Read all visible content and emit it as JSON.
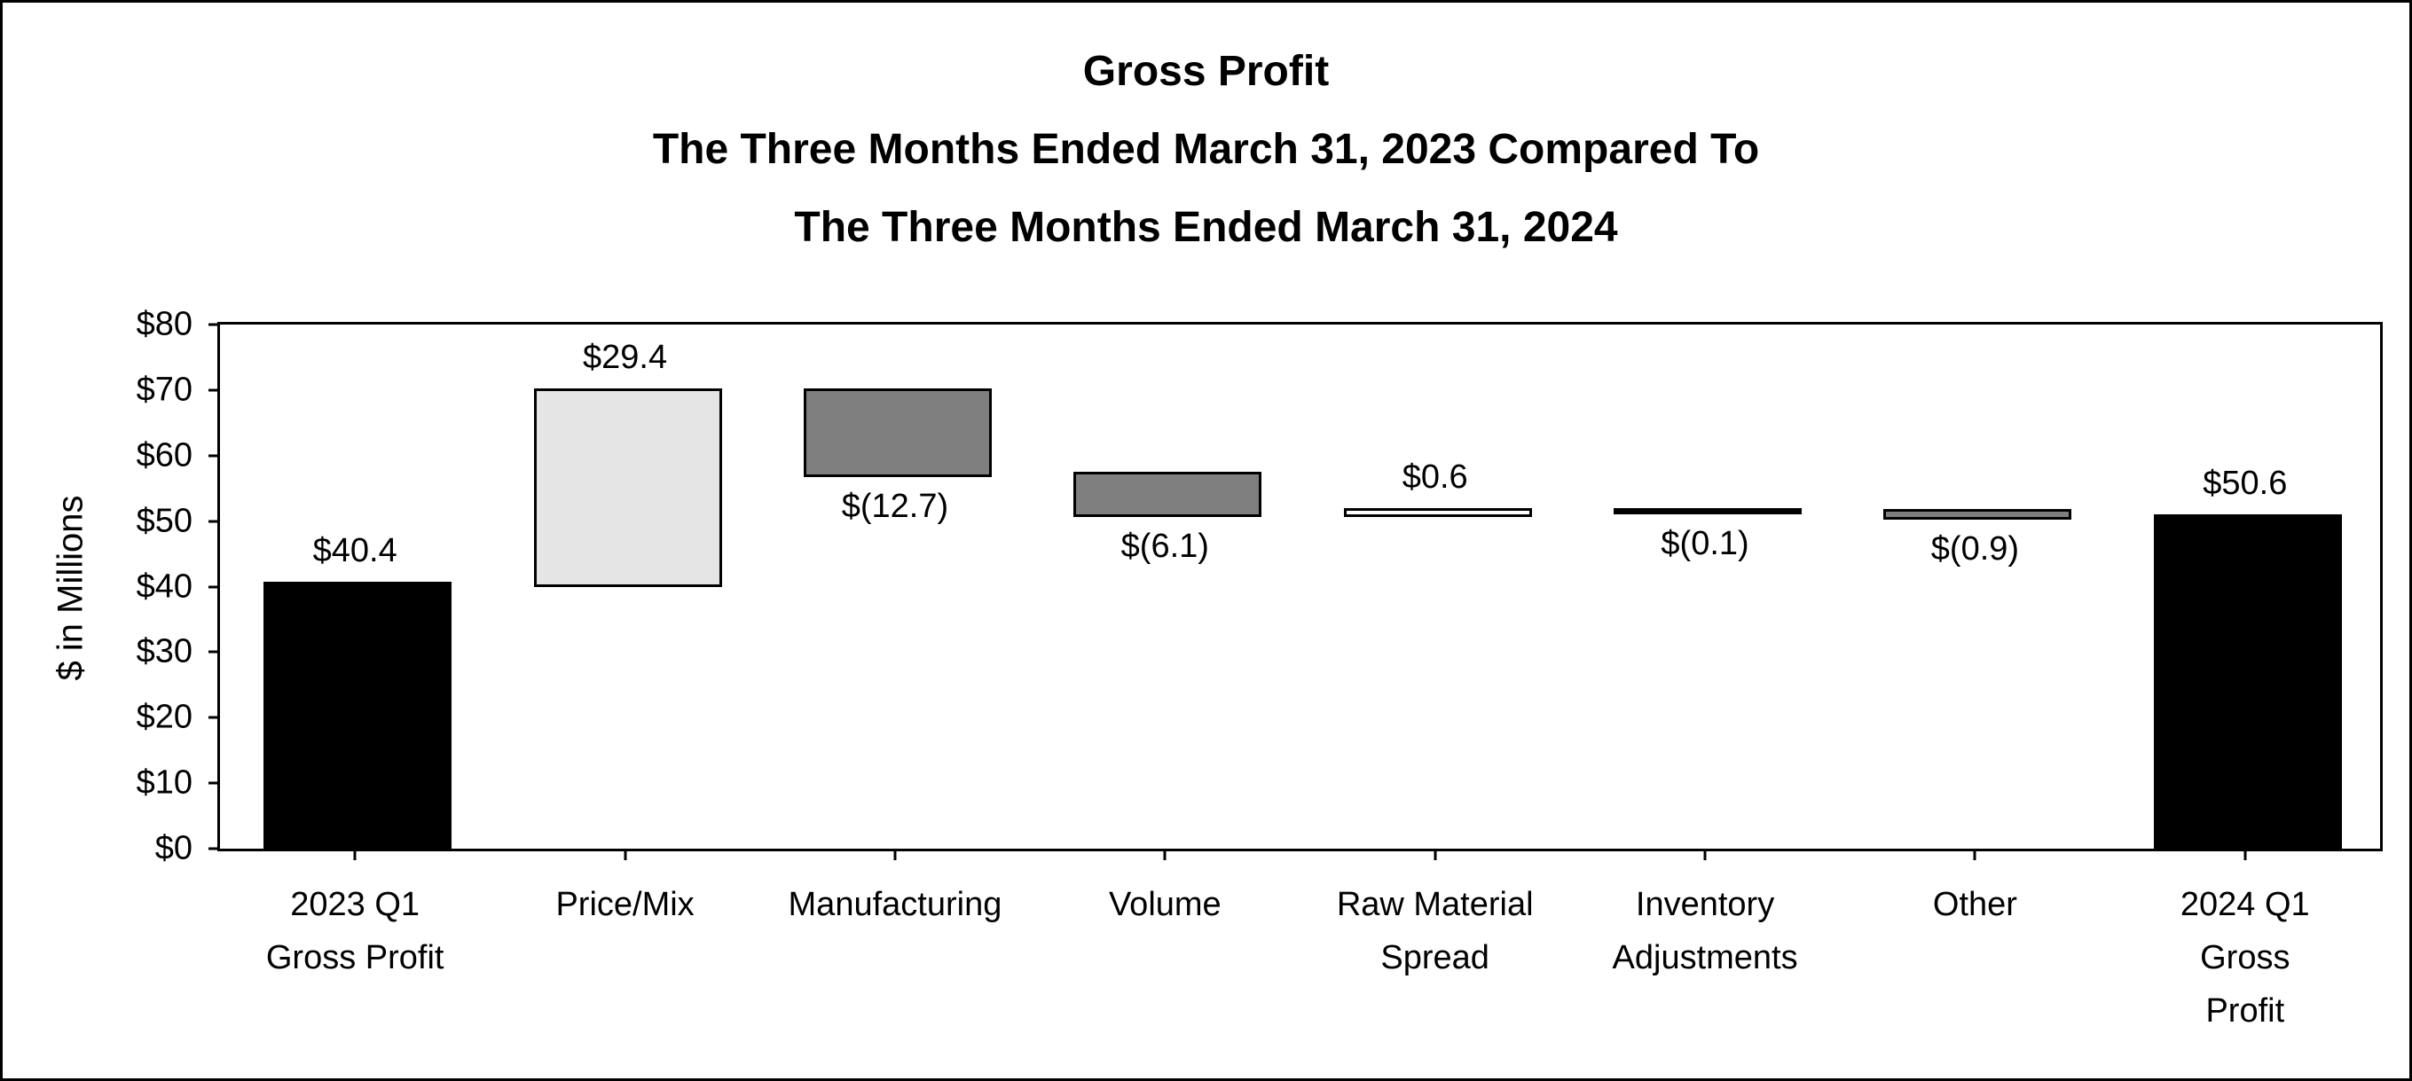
{
  "header": {
    "lines": [
      "Gross Profit",
      "The Three Months Ended March 31, 2023 Compared To",
      "The Three Months Ended March 31, 2024"
    ]
  },
  "chart_data": {
    "type": "bar",
    "subtype": "waterfall",
    "title": "Gross Profit",
    "subtitle": "The Three Months Ended March 31, 2023 Compared To The Three Months Ended March 31, 2024",
    "xlabel": "",
    "ylabel": "$ in Millions",
    "ylim": [
      0,
      80
    ],
    "ytick_step": 10,
    "ytick_labels": [
      "$0",
      "$10",
      "$20",
      "$30",
      "$40",
      "$50",
      "$60",
      "$70",
      "$80"
    ],
    "grid": false,
    "legend": "none",
    "categories": [
      "2023 Q1 Gross Profit",
      "Price/Mix",
      "Manufacturing",
      "Volume",
      "Raw Material Spread",
      "Inventory Adjustments",
      "Other",
      "2024 Q1 Gross Profit"
    ],
    "values": [
      40.4,
      29.4,
      -12.7,
      -6.1,
      0.6,
      -0.1,
      -0.9,
      50.6
    ],
    "running_totals": [
      40.4,
      69.8,
      57.1,
      51.0,
      51.6,
      51.5,
      50.6,
      50.6
    ],
    "items": [
      {
        "category": "2023 Q1 Gross Profit",
        "label_lines": [
          "2023 Q1",
          "Gross Profit"
        ],
        "kind": "total",
        "value": 40.4,
        "display": "$40.4",
        "label_position": "above",
        "fill": "#000000"
      },
      {
        "category": "Price/Mix",
        "label_lines": [
          "Price/Mix"
        ],
        "kind": "delta",
        "value": 29.4,
        "display": "$29.4",
        "label_position": "above",
        "fill": "#e5e5e5"
      },
      {
        "category": "Manufacturing",
        "label_lines": [
          "Manufacturing"
        ],
        "kind": "delta",
        "value": -12.7,
        "display": "$(12.7)",
        "label_position": "below",
        "fill": "#7f7f7f"
      },
      {
        "category": "Volume",
        "label_lines": [
          "Volume"
        ],
        "kind": "delta",
        "value": -6.1,
        "display": "$(6.1)",
        "label_position": "below",
        "fill": "#7f7f7f"
      },
      {
        "category": "Raw Material Spread",
        "label_lines": [
          "Raw Material",
          "Spread"
        ],
        "kind": "delta",
        "value": 0.6,
        "display": "$0.6",
        "label_position": "above",
        "fill": "#ffffff"
      },
      {
        "category": "Inventory Adjustments",
        "label_lines": [
          "Inventory",
          "Adjustments"
        ],
        "kind": "delta",
        "value": -0.1,
        "display": "$(0.1)",
        "label_position": "below",
        "fill": "#000000"
      },
      {
        "category": "Other",
        "label_lines": [
          "Other"
        ],
        "kind": "delta",
        "value": -0.9,
        "display": "$(0.9)",
        "label_position": "below",
        "fill": "#7f7f7f"
      },
      {
        "category": "2024 Q1 Gross Profit",
        "label_lines": [
          "2024 Q1",
          "Gross",
          "Profit"
        ],
        "kind": "total",
        "value": 50.6,
        "display": "$50.6",
        "label_position": "above",
        "fill": "#000000"
      }
    ],
    "colors": {
      "total_bar": "#000000",
      "light_delta_bar": "#e5e5e5",
      "medium_delta_bar": "#7f7f7f",
      "white_delta_bar": "#ffffff",
      "bar_border": "#000000",
      "axis": "#000000",
      "background": "#ffffff",
      "text": "#000000"
    }
  }
}
